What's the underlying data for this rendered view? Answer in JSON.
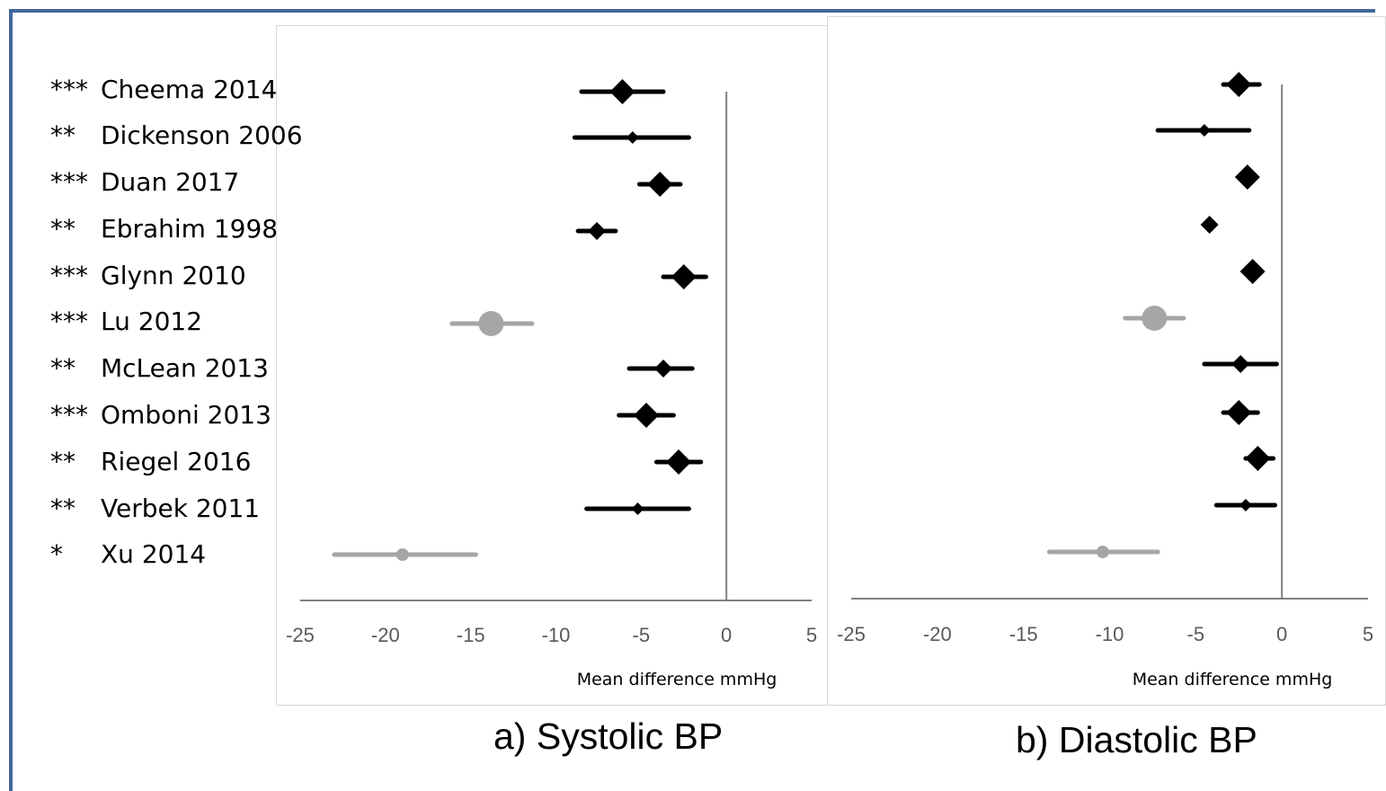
{
  "labels": [
    {
      "stars": "***",
      "name": "Cheema 2014"
    },
    {
      "stars": "**",
      "name": "Dickenson 2006"
    },
    {
      "stars": "***",
      "name": "Duan 2017"
    },
    {
      "stars": "**",
      "name": "Ebrahim 1998"
    },
    {
      "stars": "***",
      "name": "Glynn 2010"
    },
    {
      "stars": "***",
      "name": "Lu 2012"
    },
    {
      "stars": "**",
      "name": "McLean 2013"
    },
    {
      "stars": "***",
      "name": "Omboni 2013"
    },
    {
      "stars": "**",
      "name": "Riegel 2016"
    },
    {
      "stars": "**",
      "name": "Verbek 2011"
    },
    {
      "stars": "*",
      "name": "Xu 2014"
    }
  ],
  "captions": {
    "a": "a) Systolic BP",
    "b": "b) Diastolic BP"
  },
  "colors": {
    "included": "#000000",
    "excluded": "#a6a6a6",
    "axis": "#808080"
  },
  "chart_data": [
    {
      "type": "scatter",
      "title": "a) Systolic BP",
      "xlabel": "Mean difference mmHg",
      "xlim": [
        -25,
        5
      ],
      "xticks": [
        -25,
        -20,
        -15,
        -10,
        -5,
        0,
        5
      ],
      "reference_line": 0,
      "points": [
        {
          "study": "Cheema 2014",
          "mean": -6.1,
          "lower": -8.5,
          "upper": -3.7,
          "weight": "large",
          "group": "included"
        },
        {
          "study": "Dickenson 2006",
          "mean": -5.5,
          "lower": -8.9,
          "upper": -2.2,
          "weight": "small",
          "group": "included"
        },
        {
          "study": "Duan 2017",
          "mean": -3.9,
          "lower": -5.1,
          "upper": -2.7,
          "weight": "large",
          "group": "included"
        },
        {
          "study": "Ebrahim 1998",
          "mean": -7.6,
          "lower": -8.7,
          "upper": -6.5,
          "weight": "medium",
          "group": "included"
        },
        {
          "study": "Glynn 2010",
          "mean": -2.5,
          "lower": -3.7,
          "upper": -1.2,
          "weight": "large",
          "group": "included"
        },
        {
          "study": "Lu 2012",
          "mean": -13.8,
          "lower": -16.1,
          "upper": -11.4,
          "weight": "large",
          "group": "excluded"
        },
        {
          "study": "McLean 2013",
          "mean": -3.7,
          "lower": -5.7,
          "upper": -2.0,
          "weight": "medium",
          "group": "included"
        },
        {
          "study": "Omboni 2013",
          "mean": -4.7,
          "lower": -6.3,
          "upper": -3.1,
          "weight": "large",
          "group": "included"
        },
        {
          "study": "Riegel 2016",
          "mean": -2.8,
          "lower": -4.1,
          "upper": -1.5,
          "weight": "large",
          "group": "included"
        },
        {
          "study": "Verbek 2011",
          "mean": -5.2,
          "lower": -8.2,
          "upper": -2.2,
          "weight": "small",
          "group": "included"
        },
        {
          "study": "Xu 2014",
          "mean": -19.0,
          "lower": -23.0,
          "upper": -14.7,
          "weight": "small",
          "group": "excluded"
        }
      ]
    },
    {
      "type": "scatter",
      "title": "b) Diastolic BP",
      "xlabel": "Mean difference mmHg",
      "xlim": [
        -25,
        5
      ],
      "xticks": [
        -25,
        -20,
        -15,
        -10,
        -5,
        0,
        5
      ],
      "reference_line": 0,
      "points": [
        {
          "study": "Cheema 2014",
          "mean": -2.5,
          "lower": -3.4,
          "upper": -1.3,
          "weight": "large",
          "group": "included"
        },
        {
          "study": "Dickenson 2006",
          "mean": -4.5,
          "lower": -7.2,
          "upper": -1.9,
          "weight": "small",
          "group": "included"
        },
        {
          "study": "Duan 2017",
          "mean": -2.0,
          "lower": -2.4,
          "upper": -1.6,
          "weight": "large",
          "group": "included"
        },
        {
          "study": "Ebrahim 1998",
          "mean": -4.2,
          "lower": -4.5,
          "upper": -3.9,
          "weight": "medium",
          "group": "included"
        },
        {
          "study": "Glynn 2010",
          "mean": -1.7,
          "lower": -2.1,
          "upper": -1.3,
          "weight": "large",
          "group": "included"
        },
        {
          "study": "Lu 2012",
          "mean": -7.4,
          "lower": -9.1,
          "upper": -5.7,
          "weight": "large",
          "group": "excluded"
        },
        {
          "study": "McLean 2013",
          "mean": -2.4,
          "lower": -4.5,
          "upper": -0.3,
          "weight": "medium",
          "group": "included"
        },
        {
          "study": "Omboni 2013",
          "mean": -2.5,
          "lower": -3.4,
          "upper": -1.4,
          "weight": "large",
          "group": "included"
        },
        {
          "study": "Riegel 2016",
          "mean": -1.4,
          "lower": -2.1,
          "upper": -0.5,
          "weight": "large",
          "group": "included"
        },
        {
          "study": "Verbek 2011",
          "mean": -2.1,
          "lower": -3.8,
          "upper": -0.4,
          "weight": "small",
          "group": "included"
        },
        {
          "study": "Xu 2014",
          "mean": -10.4,
          "lower": -13.5,
          "upper": -7.2,
          "weight": "small",
          "group": "excluded"
        }
      ]
    }
  ]
}
